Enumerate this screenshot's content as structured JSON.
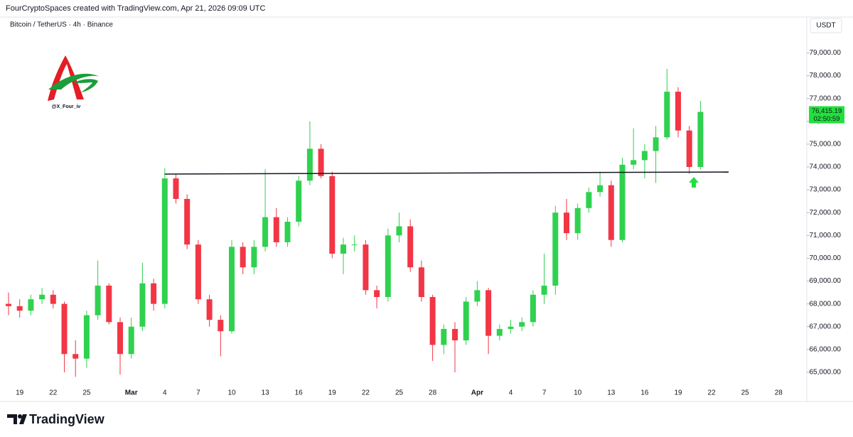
{
  "header": "FourCryptoSpaces created with TradingView.com, Apr 21, 2026 09:09 UTC",
  "footer": "TradingView",
  "watermark": "@X_Four_iv",
  "chart_data": {
    "type": "candlestick",
    "title": "Bitcoin / TetherUS · 4h · Binance",
    "currency": "USDT",
    "categories": [
      null,
      "19",
      null,
      null,
      "22",
      null,
      null,
      "25",
      null,
      null,
      null,
      "Mar",
      null,
      null,
      "4",
      null,
      null,
      "7",
      null,
      null,
      "10",
      null,
      null,
      "13",
      null,
      null,
      "16",
      null,
      null,
      "19",
      null,
      null,
      "22",
      null,
      null,
      "25",
      null,
      null,
      "28",
      null,
      null,
      null,
      "Apr",
      null,
      null,
      "4",
      null,
      null,
      "7",
      null,
      null,
      "10",
      null,
      null,
      "13",
      null,
      null,
      "16",
      null,
      null,
      "19",
      null,
      null,
      "22",
      null,
      null,
      "25",
      null,
      null,
      "28",
      null
    ],
    "open": [
      68000,
      67900,
      67700,
      68200,
      68400,
      68000,
      65800,
      65600,
      67500,
      68800,
      67200,
      65800,
      67000,
      68900,
      68000,
      73500,
      72600,
      70600,
      68200,
      67300,
      66800,
      70500,
      69600,
      70500,
      71800,
      70700,
      71600,
      73400,
      74800,
      73600,
      70200,
      70600,
      70600,
      68600,
      68300,
      71000,
      71400,
      69600,
      68300,
      66200,
      66900,
      66400,
      68100,
      68600,
      66600,
      66900,
      67000,
      67200,
      68400,
      68800,
      72000,
      71100,
      72200,
      72900,
      73200,
      70800,
      74100,
      74300,
      74700,
      75300,
      77300,
      75600,
      74000,
      null,
      null,
      null,
      null,
      null,
      null,
      null,
      null
    ],
    "high": [
      68500,
      68200,
      68400,
      68700,
      68600,
      68100,
      66400,
      67700,
      69900,
      68900,
      67400,
      67400,
      69800,
      69100,
      73950,
      73700,
      72800,
      70800,
      68400,
      67500,
      70800,
      70700,
      70800,
      73900,
      72200,
      71800,
      73600,
      76000,
      75000,
      73800,
      70900,
      71000,
      70800,
      68800,
      71300,
      72000,
      71700,
      69900,
      68400,
      67100,
      67200,
      68300,
      69000,
      68700,
      67100,
      67300,
      67400,
      68600,
      70200,
      72300,
      72600,
      72400,
      73100,
      73800,
      73400,
      74400,
      75700,
      75000,
      75800,
      78300,
      77500,
      75800,
      76900,
      null,
      null,
      null,
      null,
      null,
      null,
      null,
      null
    ],
    "low": [
      67500,
      67400,
      67500,
      68000,
      67800,
      65000,
      64800,
      65200,
      67300,
      67100,
      64900,
      65600,
      66800,
      67700,
      67800,
      72400,
      70400,
      68000,
      67000,
      65700,
      66700,
      69300,
      69300,
      70300,
      70500,
      70500,
      71400,
      73200,
      73500,
      70000,
      69300,
      70300,
      68400,
      67800,
      68100,
      70700,
      69400,
      68100,
      65500,
      65800,
      65000,
      66200,
      67900,
      65800,
      66400,
      66700,
      66800,
      67000,
      68000,
      68400,
      70800,
      70800,
      72000,
      72700,
      70500,
      70700,
      73900,
      73500,
      73300,
      75200,
      75300,
      73700,
      73900,
      null,
      null,
      null,
      null,
      null,
      null,
      null,
      null
    ],
    "close": [
      67900,
      67700,
      68200,
      68400,
      68000,
      65800,
      65600,
      67500,
      68800,
      67200,
      65800,
      67000,
      68900,
      68000,
      73500,
      72600,
      70600,
      68200,
      67300,
      66800,
      70500,
      69600,
      70500,
      71800,
      70700,
      71600,
      73400,
      74800,
      73600,
      70200,
      70600,
      70600,
      68600,
      68300,
      71000,
      71400,
      69600,
      68300,
      66200,
      66900,
      66400,
      68100,
      68600,
      66600,
      66900,
      67000,
      67200,
      68400,
      68800,
      72000,
      71100,
      72200,
      72900,
      73200,
      70800,
      74100,
      74300,
      74700,
      75300,
      77300,
      75600,
      74000,
      76415.19,
      null,
      null,
      null,
      null,
      null,
      null,
      null,
      null
    ],
    "up_color": "#2fd14f",
    "down_color": "#f23645",
    "ylim": [
      64500,
      79700
    ],
    "yticks": [
      {
        "value": 65000,
        "label": "65,000.00"
      },
      {
        "value": 66000,
        "label": "66,000.00"
      },
      {
        "value": 67000,
        "label": "67,000.00"
      },
      {
        "value": 68000,
        "label": "68,000.00"
      },
      {
        "value": 69000,
        "label": "69,000.00"
      },
      {
        "value": 70000,
        "label": "70,000.00"
      },
      {
        "value": 71000,
        "label": "71,000.00"
      },
      {
        "value": 72000,
        "label": "72,000.00"
      },
      {
        "value": 73000,
        "label": "73,000.00"
      },
      {
        "value": 74000,
        "label": "74,000.00"
      },
      {
        "value": 75000,
        "label": "75,000.00"
      },
      {
        "value": 76000,
        "label": "76,000.00"
      },
      {
        "value": 77000,
        "label": "77,000.00"
      },
      {
        "value": 78000,
        "label": "78,000.00"
      },
      {
        "value": 79000,
        "label": "79,000.00"
      }
    ],
    "support_line": [
      73690,
      73780
    ],
    "last_price": {
      "value": 76415.19,
      "label": "76,415.19",
      "countdown": "02:50:59"
    }
  }
}
